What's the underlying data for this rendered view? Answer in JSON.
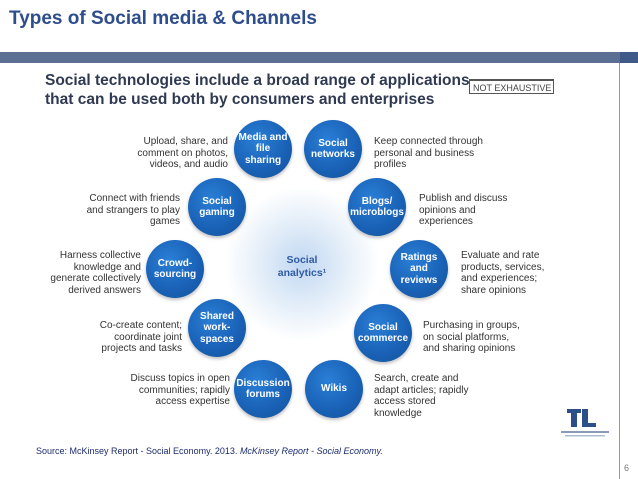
{
  "slide": {
    "title": "Types of Social media & Channels",
    "page_number": "6",
    "source_plain": "Source: McKinsey Report - Social Economy. 2013. ",
    "source_italic": "McKinsey Report - Social Economy."
  },
  "panel": {
    "headline_line1": "Social technologies include a broad range of applications",
    "headline_line2": "that can be used both by consumers and enterprises",
    "tag": "NOT EXHAUSTIVE",
    "center": {
      "line1": "Social",
      "line2": "analytics¹"
    }
  },
  "nodes": [
    {
      "label": "Media and file sharing",
      "desc": "Upload, share, and comment on photos, videos, and audio"
    },
    {
      "label": "Social networks",
      "desc": "Keep connected through personal and business profiles"
    },
    {
      "label": "Blogs/ microblogs",
      "desc": "Publish and discuss opinions and experiences"
    },
    {
      "label": "Ratings and reviews",
      "desc": "Evaluate and rate products, services, and experiences; share opinions"
    },
    {
      "label": "Social commerce",
      "desc": "Purchasing in groups, on social platforms, and sharing opinions"
    },
    {
      "label": "Wikis",
      "desc": "Search, create and adapt articles; rapidly access stored knowledge"
    },
    {
      "label": "Discussion forums",
      "desc": "Discuss topics in open communities; rapidly access expertise"
    },
    {
      "label": "Shared work-spaces",
      "desc": "Co-create content; coordinate joint projects and tasks"
    },
    {
      "label": "Crowd-sourcing",
      "desc": "Harness collective knowledge and generate collectively derived answers"
    },
    {
      "label": "Social gaming",
      "desc": "Connect with friends and strangers to play games"
    }
  ],
  "colors": {
    "title": "#2e4d8c",
    "node": "#1a63b8",
    "bar": "#5b6f93"
  }
}
